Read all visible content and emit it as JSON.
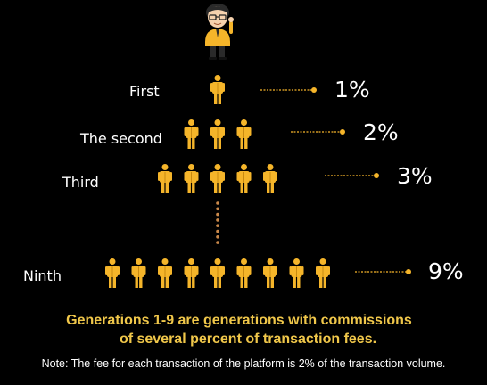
{
  "generations": [
    {
      "label": "First",
      "count": 1,
      "percent": "1%"
    },
    {
      "label": "The second",
      "count": 3,
      "percent": "2%"
    },
    {
      "label": "Third",
      "count": 5,
      "percent": "3%"
    },
    {
      "label": "Ninth",
      "count": 9,
      "percent": "9%"
    }
  ],
  "caption": {
    "line1": "Generations 1-9 are generations with commissions",
    "line2": "of several percent of transaction fees."
  },
  "note": "Note: The fee for each transaction of the platform is 2% of the transaction volume.",
  "colors": {
    "background": "#000000",
    "figure": "#f5b52a",
    "figure_dark": "#c98a10",
    "accent_text": "#f0c74a",
    "connector": "#f5b52a",
    "dots": "#c9884a"
  },
  "icons": {
    "top_figure": "referrer-avatar-icon",
    "member": "person-icon"
  }
}
